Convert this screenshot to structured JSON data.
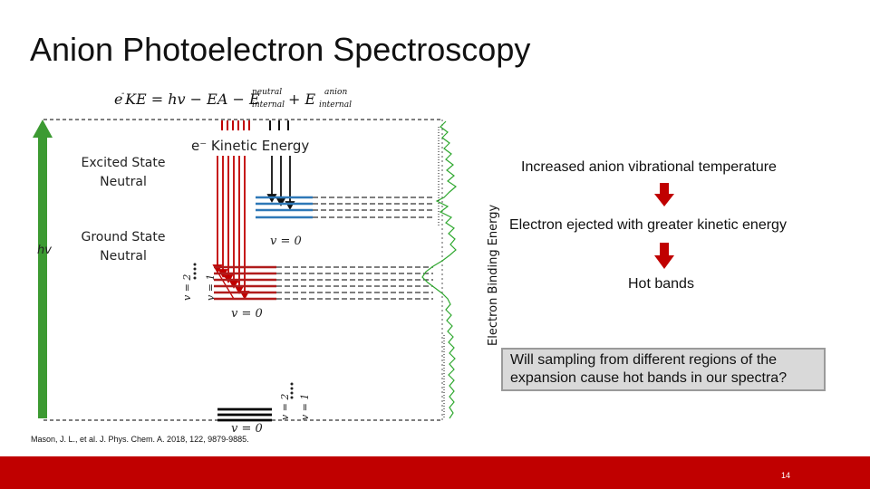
{
  "title": "Anion Photoelectron Spectroscopy",
  "diagram": {
    "equation": {
      "prefix": "e",
      "sup_minus": "-",
      "body": "KE = hv − EA − E",
      "neutral_sup": "neutral",
      "internal_sub": "internal",
      "plus": " + E",
      "anion_sup": "anion",
      "anion_internal_sub": "internal"
    },
    "ke_label": "e⁻ Kinetic Energy",
    "excited_state_label": "Excited State Neutral",
    "ground_state_label": "Ground State Neutral",
    "hv_label": "hv",
    "v0_excited": "v = 0",
    "v_labels_neutral": [
      "v = 2",
      "v = 1",
      "v = 0"
    ],
    "v_labels_anion": [
      "v = 2",
      "v = 1",
      "v = 0"
    ],
    "ebe_axis_label": "Electron Binding Energy",
    "arrow_color": "#3c9a32",
    "neutral_level_color": "#b01c1c",
    "excited_level_color": "#2e78b7",
    "anion_level_color": "#000000",
    "spectrum_color": "#2fa82f"
  },
  "right_panel": {
    "line1": "Increased anion vibrational temperature",
    "line2": "Electron ejected with greater kinetic energy",
    "line3": "Hot bands",
    "question": "Will sampling from different regions of the expansion cause hot bands in our spectra?",
    "down_arrow_color": "#c00000"
  },
  "citation": "Mason, J. L., et al. J. Phys. Chem. A. 2018, 122, 9879-9885.",
  "footer": {
    "page_number": "14",
    "bar_color": "#c00000"
  }
}
